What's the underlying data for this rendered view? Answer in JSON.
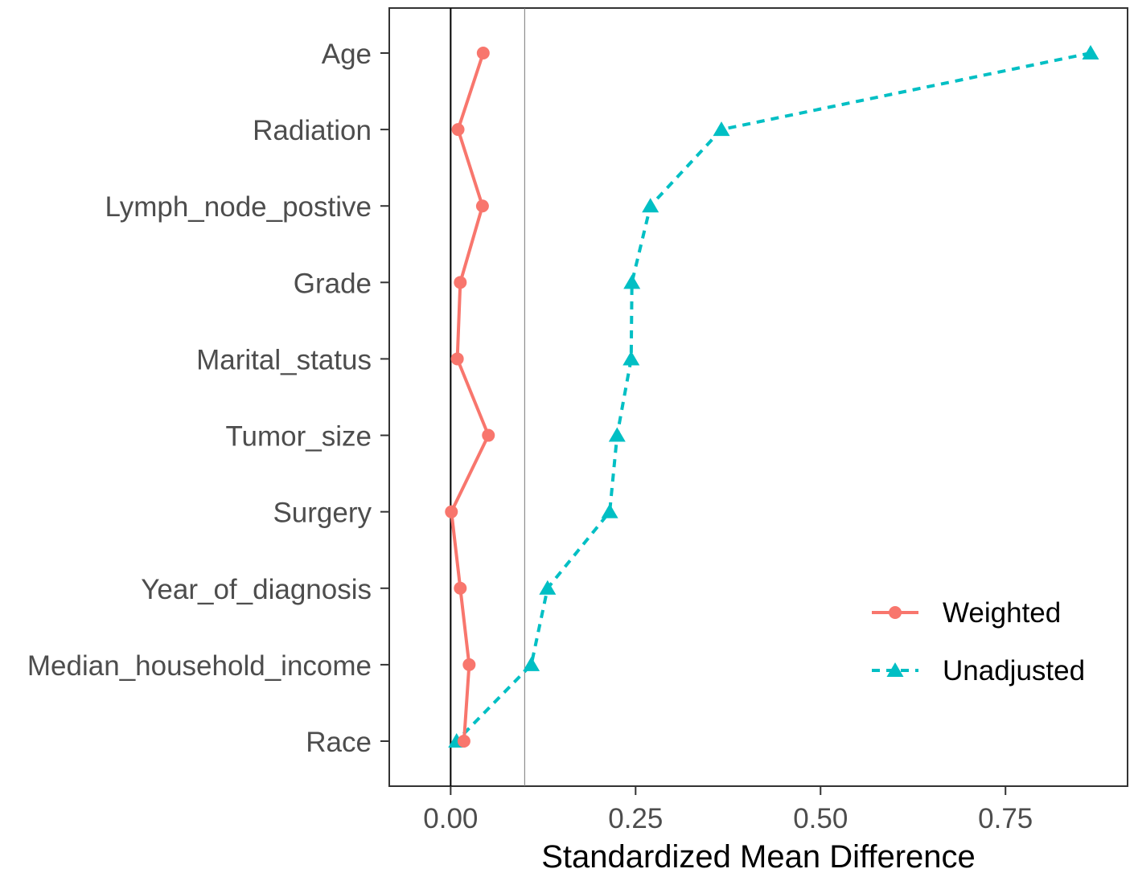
{
  "chart_data": {
    "type": "line",
    "title": "",
    "xlabel": "Standardized Mean Difference",
    "ylabel": "",
    "xlim": [
      -0.083,
      0.915
    ],
    "x_ticks": [
      {
        "value": 0,
        "label": "0.00"
      },
      {
        "value": 0.25,
        "label": "0.25"
      },
      {
        "value": 0.5,
        "label": "0.50"
      },
      {
        "value": 0.75,
        "label": "0.75"
      }
    ],
    "reference_lines": [
      0,
      0.1
    ],
    "categories": [
      "Age",
      "Radiation",
      "Lymph_node_postive",
      "Grade",
      "Marital_status",
      "Tumor_size",
      "Surgery",
      "Year_of_diagnosis",
      "Median_household_income",
      "Race"
    ],
    "series": [
      {
        "name": "Weighted",
        "color": "#F8766D",
        "marker": "circle",
        "line": "solid",
        "values": [
          0.044,
          0.01,
          0.043,
          0.013,
          0.009,
          0.051,
          0.001,
          0.013,
          0.025,
          0.018
        ]
      },
      {
        "name": "Unadjusted",
        "color": "#00BFC4",
        "marker": "triangle",
        "line": "dashed",
        "values": [
          0.865,
          0.366,
          0.27,
          0.245,
          0.244,
          0.225,
          0.215,
          0.131,
          0.109,
          0.008
        ]
      }
    ],
    "legend_position": "right",
    "grid": false
  }
}
